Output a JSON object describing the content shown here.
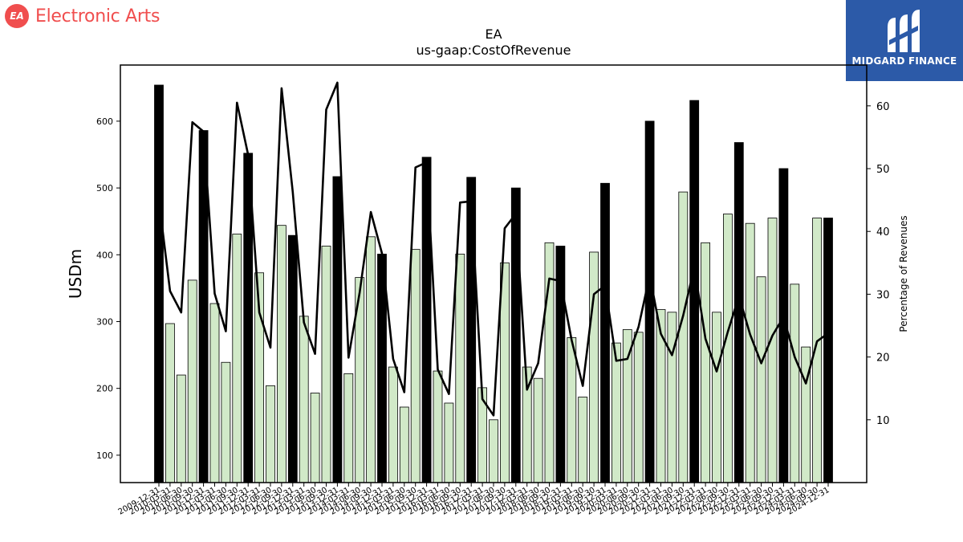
{
  "header": {
    "company_logo_text": "EA",
    "company_name": "Electronic Arts",
    "badge_text": "MIDGARD FINANCE"
  },
  "chart_data": {
    "type": "bar",
    "title": "EA",
    "subtitle": "us-gaap:CostOfRevenue",
    "ylabel": "USDm",
    "y2label": "Percentage of Revenues",
    "ylim": [
      59,
      684
    ],
    "y2lim": [
      0,
      66.5
    ],
    "yticks": [
      100,
      200,
      300,
      400,
      500,
      600
    ],
    "y2ticks": [
      10,
      20,
      30,
      40,
      50,
      60
    ],
    "colors": {
      "annual": "#000000",
      "quarterly": "#d1e9c8",
      "edge": "#000000",
      "line": "#000000"
    },
    "x_tick_labels": [
      "2009-12-31",
      "2010-03-31",
      "2010-06-30",
      "2010-09-30",
      "2010-12-31",
      "2011-03-31",
      "2011-06-30",
      "2011-09-30",
      "2011-12-31",
      "2012-03-31",
      "2012-06-30",
      "2012-09-30",
      "2012-12-31",
      "2013-03-31",
      "2013-06-30",
      "2013-09-30",
      "2013-12-31",
      "2014-03-31",
      "2014-06-30",
      "2014-09-30",
      "2014-12-31",
      "2015-03-31",
      "2015-06-30",
      "2015-09-30",
      "2015-12-31",
      "2016-03-31",
      "2016-06-30",
      "2016-09-30",
      "2016-12-31",
      "2017-03-31",
      "2017-06-30",
      "2017-09-30",
      "2017-12-31",
      "2018-03-31",
      "2018-06-30",
      "2018-09-30",
      "2018-12-31",
      "2019-03-31",
      "2019-06-30",
      "2019-09-30",
      "2019-12-31",
      "2020-03-31",
      "2020-06-30",
      "2020-09-30",
      "2020-12-31",
      "2021-03-31",
      "2021-06-30",
      "2021-09-30",
      "2021-12-31",
      "2022-03-31",
      "2022-06-30",
      "2022-09-30",
      "2022-12-31",
      "2023-03-31",
      "2023-06-30",
      "2023-09-30",
      "2023-12-31",
      "2024-03-31",
      "2024-06-30",
      "2024-09-30",
      "2024-12-31"
    ],
    "series": [
      {
        "bar_type": "quarterly",
        "points": [
          {
            "x": 1,
            "y": 297
          },
          {
            "x": 2,
            "y": 220
          },
          {
            "x": 3,
            "y": 362
          },
          {
            "x": 5,
            "y": 327
          },
          {
            "x": 6,
            "y": 239
          },
          {
            "x": 7,
            "y": 431
          },
          {
            "x": 9,
            "y": 373
          },
          {
            "x": 10,
            "y": 204
          },
          {
            "x": 11,
            "y": 444
          },
          {
            "x": 13,
            "y": 308
          },
          {
            "x": 14,
            "y": 193
          },
          {
            "x": 15,
            "y": 413
          },
          {
            "x": 17,
            "y": 222
          },
          {
            "x": 18,
            "y": 366
          },
          {
            "x": 19,
            "y": 427
          },
          {
            "x": 21,
            "y": 232
          },
          {
            "x": 22,
            "y": 172
          },
          {
            "x": 23,
            "y": 408
          },
          {
            "x": 25,
            "y": 226
          },
          {
            "x": 26,
            "y": 178
          },
          {
            "x": 27,
            "y": 401
          },
          {
            "x": 29,
            "y": 201
          },
          {
            "x": 30,
            "y": 153
          },
          {
            "x": 31,
            "y": 388
          },
          {
            "x": 33,
            "y": 232
          },
          {
            "x": 34,
            "y": 215
          },
          {
            "x": 35,
            "y": 418
          },
          {
            "x": 37,
            "y": 276
          },
          {
            "x": 38,
            "y": 187
          },
          {
            "x": 39,
            "y": 404
          },
          {
            "x": 41,
            "y": 268
          },
          {
            "x": 42,
            "y": 288
          },
          {
            "x": 43,
            "y": 284
          },
          {
            "x": 45,
            "y": 318
          },
          {
            "x": 46,
            "y": 314
          },
          {
            "x": 47,
            "y": 494
          },
          {
            "x": 49,
            "y": 418
          },
          {
            "x": 50,
            "y": 314
          },
          {
            "x": 51,
            "y": 461
          },
          {
            "x": 53,
            "y": 447
          },
          {
            "x": 54,
            "y": 367
          },
          {
            "x": 55,
            "y": 455
          },
          {
            "x": 57,
            "y": 356
          },
          {
            "x": 58,
            "y": 262
          },
          {
            "x": 59,
            "y": 455
          }
        ]
      },
      {
        "bar_type": "annual",
        "points": [
          {
            "x": 0,
            "y": 654
          },
          {
            "x": 4,
            "y": 586
          },
          {
            "x": 8,
            "y": 552
          },
          {
            "x": 12,
            "y": 429
          },
          {
            "x": 16,
            "y": 517
          },
          {
            "x": 20,
            "y": 401
          },
          {
            "x": 24,
            "y": 546
          },
          {
            "x": 28,
            "y": 516
          },
          {
            "x": 32,
            "y": 500
          },
          {
            "x": 36,
            "y": 413
          },
          {
            "x": 40,
            "y": 507
          },
          {
            "x": 44,
            "y": 600
          },
          {
            "x": 48,
            "y": 631
          },
          {
            "x": 52,
            "y": 568
          },
          {
            "x": 56,
            "y": 529
          },
          {
            "x": 60,
            "y": 455
          }
        ]
      },
      {
        "type": "line",
        "axis": "right",
        "values": [
          45.0,
          30.5,
          27.1,
          57.4,
          55.9,
          30.1,
          24.1,
          60.5,
          52.2,
          27.1,
          21.5,
          62.8,
          46.3,
          25.5,
          20.5,
          59.4,
          63.7,
          19.9,
          30.3,
          43.1,
          36.5,
          19.7,
          14.4,
          50.2,
          51.0,
          18.0,
          14.1,
          44.6,
          44.8,
          13.3,
          10.7,
          40.5,
          42.8,
          14.8,
          19.0,
          32.5,
          32.1,
          22.7,
          15.4,
          30.0,
          31.4,
          19.4,
          19.7,
          24.8,
          33.0,
          23.7,
          20.3,
          26.6,
          34.3,
          22.9,
          17.7,
          24.0,
          29.7,
          23.6,
          19.0,
          23.4,
          26.4,
          20.0,
          15.8,
          22.5,
          23.8
        ]
      }
    ]
  }
}
